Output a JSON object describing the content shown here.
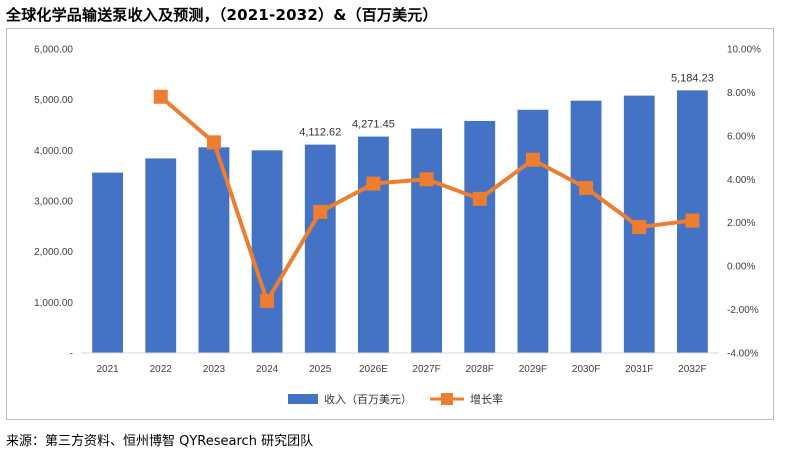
{
  "title": "全球化学品输送泵收入及预测，（2021-2032）&（百万美元）",
  "source": "来源：第三方资料、恒州博智 QYResearch 研究团队",
  "colors": {
    "bar": "#4472C4",
    "line": "#ED7D31"
  },
  "chart_data": {
    "type": "bar",
    "title": "全球化学品输送泵收入及预测，（2021-2032）&（百万美元）",
    "categories": [
      "2021",
      "2022",
      "2023",
      "2024",
      "2025",
      "2026E",
      "2027F",
      "2028F",
      "2029F",
      "2030F",
      "2031F",
      "2032F"
    ],
    "series": [
      {
        "name": "收入（百万美元）",
        "type": "bar",
        "axis": "left",
        "values": [
          3560,
          3840,
          4060,
          4000,
          4112.62,
          4271.45,
          4430,
          4580,
          4800,
          4980,
          5080,
          5184.23
        ],
        "data_labels": {
          "4": "4,112.62",
          "5": "4,271.45",
          "11": "5,184.23"
        }
      },
      {
        "name": "增长率",
        "type": "line",
        "axis": "right",
        "values": [
          null,
          7.8,
          5.7,
          -1.6,
          2.5,
          3.8,
          4.0,
          3.1,
          4.9,
          3.6,
          1.8,
          2.1
        ]
      }
    ],
    "y_left": {
      "ylim": [
        0,
        6000
      ],
      "ticks": [
        0,
        1000,
        2000,
        3000,
        4000,
        5000,
        6000
      ],
      "tick_labels": [
        "-",
        "1,000.00",
        "2,000.00",
        "3,000.00",
        "4,000.00",
        "5,000.00",
        "6,000.00"
      ]
    },
    "y_right": {
      "ylim": [
        -4,
        10
      ],
      "ticks": [
        -4,
        -2,
        0,
        2,
        4,
        6,
        8,
        10
      ],
      "tick_labels": [
        "-4.00%",
        "-2.00%",
        "0.00%",
        "2.00%",
        "4.00%",
        "6.00%",
        "8.00%",
        "10.00%"
      ]
    },
    "grid": false,
    "legend": {
      "position": "bottom",
      "entries": [
        "收入（百万美元）",
        "增长率"
      ]
    }
  }
}
